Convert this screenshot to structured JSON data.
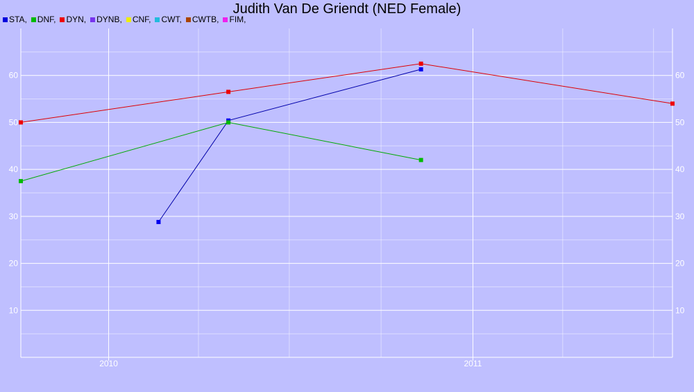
{
  "chart_data": {
    "type": "line",
    "title": "Judith Van De Griendt (NED Female)",
    "legend": [
      {
        "label": "STA,",
        "color": "#0000dd"
      },
      {
        "label": "DNF,",
        "color": "#00bb00"
      },
      {
        "label": "DYN,",
        "color": "#ee0000"
      },
      {
        "label": "DYNB,",
        "color": "#7733ee"
      },
      {
        "label": "CNF,",
        "color": "#eeee00"
      },
      {
        "label": "CWT,",
        "color": "#22bbdd"
      },
      {
        "label": "CWTB,",
        "color": "#aa4400"
      },
      {
        "label": "FIM,",
        "color": "#ee22ee"
      }
    ],
    "x_ticks": [
      "2010",
      "2011"
    ],
    "y_ticks": [
      10,
      20,
      30,
      40,
      50,
      60
    ],
    "ylim": [
      0,
      70
    ],
    "grid": true,
    "legend_placement": "top-left",
    "series": [
      {
        "name": "STA",
        "color": "#0000aa",
        "marker": "#0000ee",
        "points": [
          [
            "2010-02-20",
            28.8
          ],
          [
            "2010-05-01",
            50.4
          ],
          [
            "2010-11-10",
            61.3
          ]
        ]
      },
      {
        "name": "DNF",
        "color": "#00aa00",
        "marker": "#00bb00",
        "points": [
          [
            "2009-10-05",
            37.5
          ],
          [
            "2010-05-01",
            50.0
          ],
          [
            "2010-11-10",
            42.0
          ]
        ]
      },
      {
        "name": "DYN",
        "color": "#dd0000",
        "marker": "#ee0000",
        "points": [
          [
            "2009-10-05",
            50.0
          ],
          [
            "2010-05-01",
            56.5
          ],
          [
            "2010-11-10",
            62.5
          ],
          [
            "2011-07-20",
            54.0
          ]
        ]
      }
    ]
  }
}
